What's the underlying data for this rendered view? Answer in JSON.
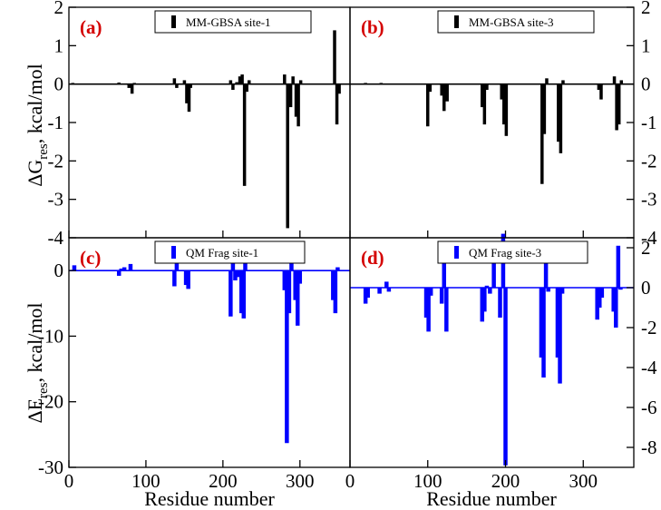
{
  "figure": {
    "ylabel_top": "ΔG",
    "ylabel_top_sub": "res",
    "ylabel_top_unit": ", kcal/mol",
    "ylabel_bottom": "ΔE",
    "ylabel_bottom_sub": "res",
    "ylabel_bottom_unit": ", kcal/mol",
    "xlabel": "Residue number"
  },
  "colors": {
    "mm": "#000000",
    "qm": "#0000ff",
    "letter": "#d40000"
  },
  "chart_data": [
    {
      "type": "bar",
      "panel": "(a)",
      "legend": "MM-GBSA site-1",
      "xlim": [
        0,
        365
      ],
      "ylim": [
        -4,
        2
      ],
      "yticks": [
        -4,
        -3,
        -2,
        -1,
        0,
        1,
        2
      ],
      "tick_side": "left",
      "points": [
        [
          5,
          0.03
        ],
        [
          65,
          0.04
        ],
        [
          78,
          -0.1
        ],
        [
          82,
          -0.25
        ],
        [
          85,
          0.03
        ],
        [
          137,
          0.15
        ],
        [
          140,
          -0.1
        ],
        [
          150,
          0.1
        ],
        [
          153,
          -0.5
        ],
        [
          156,
          -0.72
        ],
        [
          158,
          -0.1
        ],
        [
          210,
          0.1
        ],
        [
          213,
          -0.15
        ],
        [
          218,
          0.05
        ],
        [
          222,
          0.2
        ],
        [
          225,
          0.25
        ],
        [
          228,
          -2.65
        ],
        [
          231,
          -0.2
        ],
        [
          234,
          0.1
        ],
        [
          280,
          0.25
        ],
        [
          284,
          -3.75
        ],
        [
          288,
          -0.6
        ],
        [
          291,
          0.2
        ],
        [
          295,
          -0.85
        ],
        [
          298,
          -1.1
        ],
        [
          301,
          0.1
        ],
        [
          345,
          1.4
        ],
        [
          348,
          -1.05
        ],
        [
          351,
          -0.25
        ]
      ]
    },
    {
      "type": "bar",
      "panel": "(b)",
      "legend": "MM-GBSA site-3",
      "xlim": [
        0,
        365
      ],
      "ylim": [
        -4,
        2
      ],
      "yticks": [
        -4,
        -3,
        -2,
        -1,
        0,
        1,
        2
      ],
      "tick_side": "right",
      "points": [
        [
          20,
          0.03
        ],
        [
          40,
          0.03
        ],
        [
          100,
          -1.1
        ],
        [
          103,
          -0.2
        ],
        [
          118,
          -0.3
        ],
        [
          121,
          -0.7
        ],
        [
          125,
          -0.45
        ],
        [
          170,
          -0.6
        ],
        [
          173,
          -1.05
        ],
        [
          176,
          -0.15
        ],
        [
          195,
          -0.4
        ],
        [
          198,
          -1.05
        ],
        [
          201,
          -1.35
        ],
        [
          247,
          -2.6
        ],
        [
          250,
          -1.3
        ],
        [
          253,
          0.15
        ],
        [
          268,
          -1.5
        ],
        [
          271,
          -1.8
        ],
        [
          274,
          0.1
        ],
        [
          320,
          -0.15
        ],
        [
          323,
          -0.4
        ],
        [
          340,
          0.2
        ],
        [
          343,
          -1.2
        ],
        [
          346,
          -1.05
        ],
        [
          349,
          0.1
        ]
      ]
    },
    {
      "type": "bar",
      "panel": "(c)",
      "legend": "QM Frag site-1",
      "xlim": [
        0,
        365
      ],
      "ylim": [
        -30,
        5
      ],
      "yticks": [
        -30,
        -20,
        -10,
        0
      ],
      "tick_side": "left",
      "points": [
        [
          7,
          0.8
        ],
        [
          65,
          -0.8
        ],
        [
          68,
          0.3
        ],
        [
          72,
          0.5
        ],
        [
          80,
          1.0
        ],
        [
          137,
          -2.4
        ],
        [
          140,
          1.2
        ],
        [
          152,
          -2.2
        ],
        [
          155,
          -2.8
        ],
        [
          210,
          -7.0
        ],
        [
          213,
          3.2
        ],
        [
          216,
          -1.5
        ],
        [
          219,
          -1.0
        ],
        [
          224,
          -6.5
        ],
        [
          227,
          -7.3
        ],
        [
          229,
          2.0
        ],
        [
          280,
          -3.0
        ],
        [
          283,
          -26.3
        ],
        [
          286,
          -6.5
        ],
        [
          289,
          1.2
        ],
        [
          294,
          -4.5
        ],
        [
          297,
          -8.4
        ],
        [
          300,
          -2.0
        ],
        [
          343,
          -4.5
        ],
        [
          346,
          -6.5
        ],
        [
          349,
          0.5
        ]
      ]
    },
    {
      "type": "bar",
      "panel": "(d)",
      "legend": "QM Frag site-3",
      "xlim": [
        0,
        365
      ],
      "ylim": [
        -9,
        2.5
      ],
      "yticks": [
        -8,
        -6,
        -4,
        -2,
        0,
        2
      ],
      "tick_side": "right",
      "points": [
        [
          20,
          -0.8
        ],
        [
          23,
          -0.5
        ],
        [
          38,
          -0.3
        ],
        [
          47,
          0.3
        ],
        [
          50,
          -0.2
        ],
        [
          98,
          -1.5
        ],
        [
          101,
          -2.2
        ],
        [
          104,
          -0.4
        ],
        [
          118,
          -0.8
        ],
        [
          121,
          1.9
        ],
        [
          124,
          -2.2
        ],
        [
          170,
          -1.7
        ],
        [
          173,
          -1.2
        ],
        [
          176,
          0.1
        ],
        [
          180,
          -0.3
        ],
        [
          185,
          1.5
        ],
        [
          193,
          -1.5
        ],
        [
          197,
          2.7
        ],
        [
          200,
          -8.9
        ],
        [
          246,
          -3.5
        ],
        [
          249,
          -4.5
        ],
        [
          252,
          1.9
        ],
        [
          255,
          -0.2
        ],
        [
          267,
          -3.5
        ],
        [
          270,
          -4.8
        ],
        [
          273,
          -0.3
        ],
        [
          318,
          -1.6
        ],
        [
          321,
          -1.0
        ],
        [
          324,
          -0.5
        ],
        [
          339,
          -1.2
        ],
        [
          342,
          -2.0
        ],
        [
          345,
          2.1
        ],
        [
          348,
          -0.1
        ]
      ]
    }
  ]
}
